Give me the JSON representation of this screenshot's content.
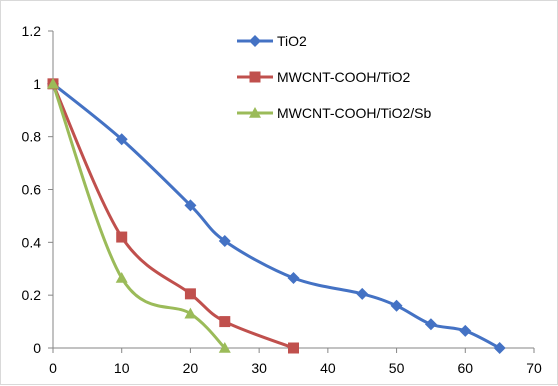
{
  "chart_data": {
    "type": "line",
    "title": "",
    "xlabel": "",
    "ylabel": "",
    "xlim": [
      0,
      70
    ],
    "ylim": [
      0,
      1.2
    ],
    "x_ticks": [
      0,
      10,
      20,
      30,
      40,
      50,
      60,
      70
    ],
    "y_ticks": [
      0,
      0.2,
      0.4,
      0.6,
      0.8,
      1,
      1.2
    ],
    "x_tick_labels": [
      "0",
      "10",
      "20",
      "30",
      "40",
      "50",
      "60",
      "70"
    ],
    "y_tick_labels": [
      "0",
      "0.2",
      "0.4",
      "0.6",
      "0.8",
      "1",
      "1.2"
    ],
    "grid": false,
    "legend_position": "top-center",
    "smooth": true,
    "series": [
      {
        "name": "TiO2",
        "color": "#4472C4",
        "marker": "diamond",
        "x": [
          0,
          10,
          20,
          25,
          35,
          45,
          50,
          55,
          60,
          65
        ],
        "y": [
          1.0,
          0.79,
          0.54,
          0.405,
          0.265,
          0.205,
          0.16,
          0.09,
          0.065,
          0.0
        ]
      },
      {
        "name": "MWCNT-COOH/TiO2",
        "color": "#C0504D",
        "marker": "square",
        "x": [
          0,
          10,
          20,
          25,
          35
        ],
        "y": [
          1.0,
          0.42,
          0.205,
          0.1,
          0.0
        ]
      },
      {
        "name": "MWCNT-COOH/TiO2/Sb",
        "color": "#9BBB59",
        "marker": "triangle",
        "x": [
          0,
          10,
          20,
          25
        ],
        "y": [
          1.0,
          0.265,
          0.13,
          0.0
        ]
      }
    ]
  }
}
